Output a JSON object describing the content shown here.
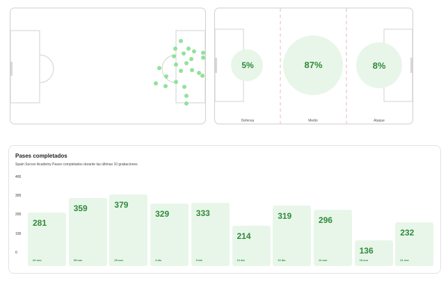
{
  "zones": [
    {
      "value": "5%",
      "label": "Defensa"
    },
    {
      "value": "87%",
      "label": "Medio"
    },
    {
      "value": "8%",
      "label": "Ataque"
    }
  ],
  "colors": {
    "accent": "#2f8a3a",
    "bar_fill": "#e8f6e9",
    "dot": "#8fe39a",
    "zone_bubble": "#e8f6e9"
  },
  "chart_data": {
    "type": "bar",
    "title": "Pases completados",
    "subtitle": "Spain Soccer Academy Pases completados durante las últimas 10 grabaciones",
    "yticks": [
      "400",
      "300",
      "200",
      "100",
      "0"
    ],
    "ylim": [
      0,
      400
    ],
    "categories": [
      "22 nov",
      "25 nov",
      "29 nov",
      "4 dic",
      "5 dic",
      "12 dic",
      "13 dic",
      "14 ene",
      "15 ene",
      "21 ene"
    ],
    "values": [
      281,
      359,
      379,
      329,
      333,
      214,
      319,
      296,
      136,
      232
    ],
    "grid": false
  }
}
